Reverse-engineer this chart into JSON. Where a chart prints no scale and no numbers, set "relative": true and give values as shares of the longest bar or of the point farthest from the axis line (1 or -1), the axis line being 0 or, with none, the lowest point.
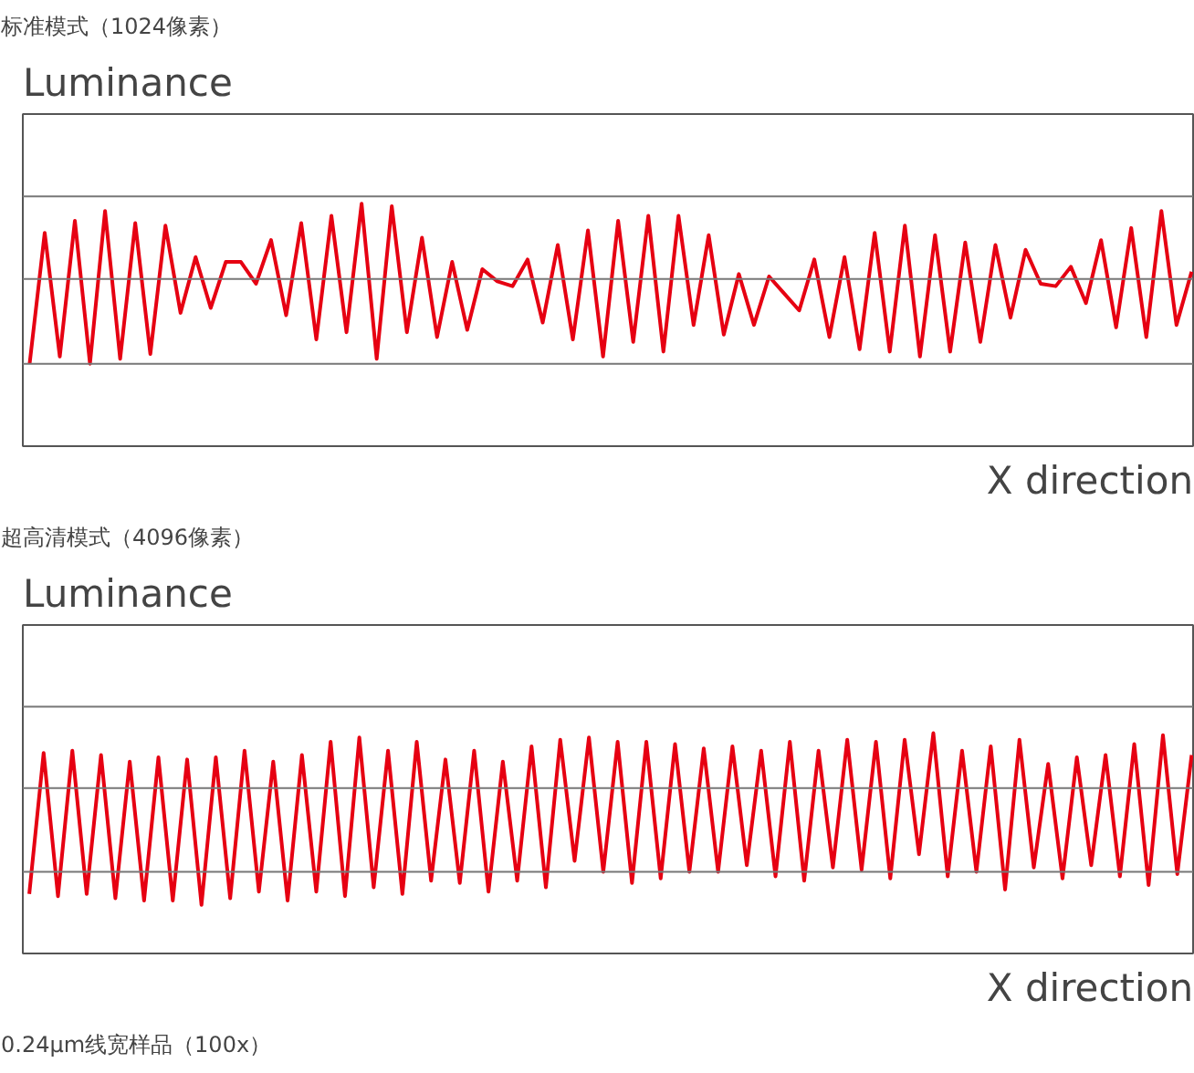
{
  "chart_data": [
    {
      "type": "line",
      "title": "标准模式（1024像素）",
      "ylabel": "Luminance",
      "xlabel": "X direction",
      "relative": true,
      "ref_lines": [
        {
          "axis": "y",
          "value": 0.34,
          "color": "#777777"
        },
        {
          "axis": "y",
          "value": 0.69,
          "color": "#777777"
        },
        {
          "axis": "y",
          "value": 1.03,
          "color": "#777777"
        }
      ],
      "categories": [
        null,
        null,
        null,
        null,
        null,
        null,
        null,
        null,
        null,
        null,
        null,
        null,
        null,
        null,
        null,
        null,
        null,
        null,
        null,
        null,
        null,
        null,
        null,
        null,
        null,
        null,
        null,
        null,
        null,
        null,
        null,
        null,
        null,
        null,
        null,
        null,
        null,
        null,
        null,
        null,
        null,
        null,
        null,
        null,
        null,
        null,
        null,
        null,
        null,
        null,
        null,
        null,
        null,
        null,
        null,
        null,
        null,
        null,
        null,
        null,
        null,
        null,
        null,
        null,
        null,
        null,
        null,
        null,
        null,
        null,
        null,
        null,
        null,
        null,
        null,
        null,
        null,
        null
      ],
      "series": [
        {
          "color": "#e60012",
          "values": [
            0.34,
            0.88,
            0.37,
            0.93,
            0.34,
            0.97,
            0.36,
            0.92,
            0.38,
            0.91,
            0.55,
            0.78,
            0.57,
            0.76,
            0.76,
            0.67,
            0.85,
            0.54,
            0.92,
            0.44,
            0.95,
            0.47,
            1,
            0.36,
            0.99,
            0.47,
            0.86,
            0.45,
            0.76,
            0.48,
            0.73,
            0.68,
            0.66,
            0.77,
            0.51,
            0.83,
            0.44,
            0.89,
            0.37,
            0.93,
            0.43,
            0.95,
            0.39,
            0.95,
            0.5,
            0.87,
            0.46,
            0.71,
            0.5,
            0.7,
            0.63,
            0.56,
            0.77,
            0.45,
            0.78,
            0.4,
            0.88,
            0.39,
            0.91,
            0.37,
            0.87,
            0.39,
            0.84,
            0.43,
            0.83,
            0.53,
            0.81,
            0.67,
            0.66,
            0.74,
            0.59,
            0.85,
            0.49,
            0.9,
            0.45,
            0.97,
            0.5,
            0.72
          ]
        }
      ]
    },
    {
      "type": "line",
      "title": "超高清模式（4096像素）",
      "ylabel": "Luminance",
      "xlabel": "X direction",
      "relative": true,
      "ref_lines": [
        {
          "axis": "y",
          "value": 0.37,
          "color": "#777777"
        },
        {
          "axis": "y",
          "value": 0.75,
          "color": "#777777"
        },
        {
          "axis": "y",
          "value": 1.12,
          "color": "#777777"
        }
      ],
      "annotations": [
        "0.24μm线宽样品（100x）"
      ],
      "categories": [
        null,
        null,
        null,
        null,
        null,
        null,
        null,
        null,
        null,
        null,
        null,
        null,
        null,
        null,
        null,
        null,
        null,
        null,
        null,
        null,
        null,
        null,
        null,
        null,
        null,
        null,
        null,
        null,
        null,
        null,
        null,
        null,
        null,
        null,
        null,
        null,
        null,
        null,
        null,
        null,
        null,
        null,
        null,
        null,
        null,
        null,
        null,
        null,
        null,
        null,
        null,
        null,
        null,
        null,
        null,
        null,
        null,
        null,
        null,
        null,
        null,
        null,
        null,
        null,
        null,
        null,
        null,
        null,
        null,
        null,
        null,
        null,
        null,
        null,
        null,
        null,
        null,
        null,
        null,
        null,
        null,
        null
      ],
      "series": [
        {
          "color": "#e60012",
          "values": [
            0.27,
            0.91,
            0.26,
            0.92,
            0.27,
            0.9,
            0.25,
            0.87,
            0.24,
            0.89,
            0.24,
            0.88,
            0.22,
            0.89,
            0.25,
            0.92,
            0.28,
            0.87,
            0.24,
            0.9,
            0.28,
            0.96,
            0.26,
            0.98,
            0.3,
            0.92,
            0.27,
            0.96,
            0.33,
            0.88,
            0.32,
            0.92,
            0.28,
            0.87,
            0.33,
            0.94,
            0.3,
            0.97,
            0.42,
            0.98,
            0.37,
            0.96,
            0.32,
            0.96,
            0.34,
            0.95,
            0.37,
            0.93,
            0.37,
            0.94,
            0.4,
            0.92,
            0.35,
            0.96,
            0.33,
            0.92,
            0.39,
            0.97,
            0.38,
            0.96,
            0.34,
            0.97,
            0.45,
            1,
            0.35,
            0.92,
            0.37,
            0.94,
            0.29,
            0.97,
            0.39,
            0.86,
            0.34,
            0.89,
            0.4,
            0.9,
            0.35,
            0.95,
            0.31,
            0.99,
            0.36,
            0.9
          ]
        }
      ]
    }
  ]
}
